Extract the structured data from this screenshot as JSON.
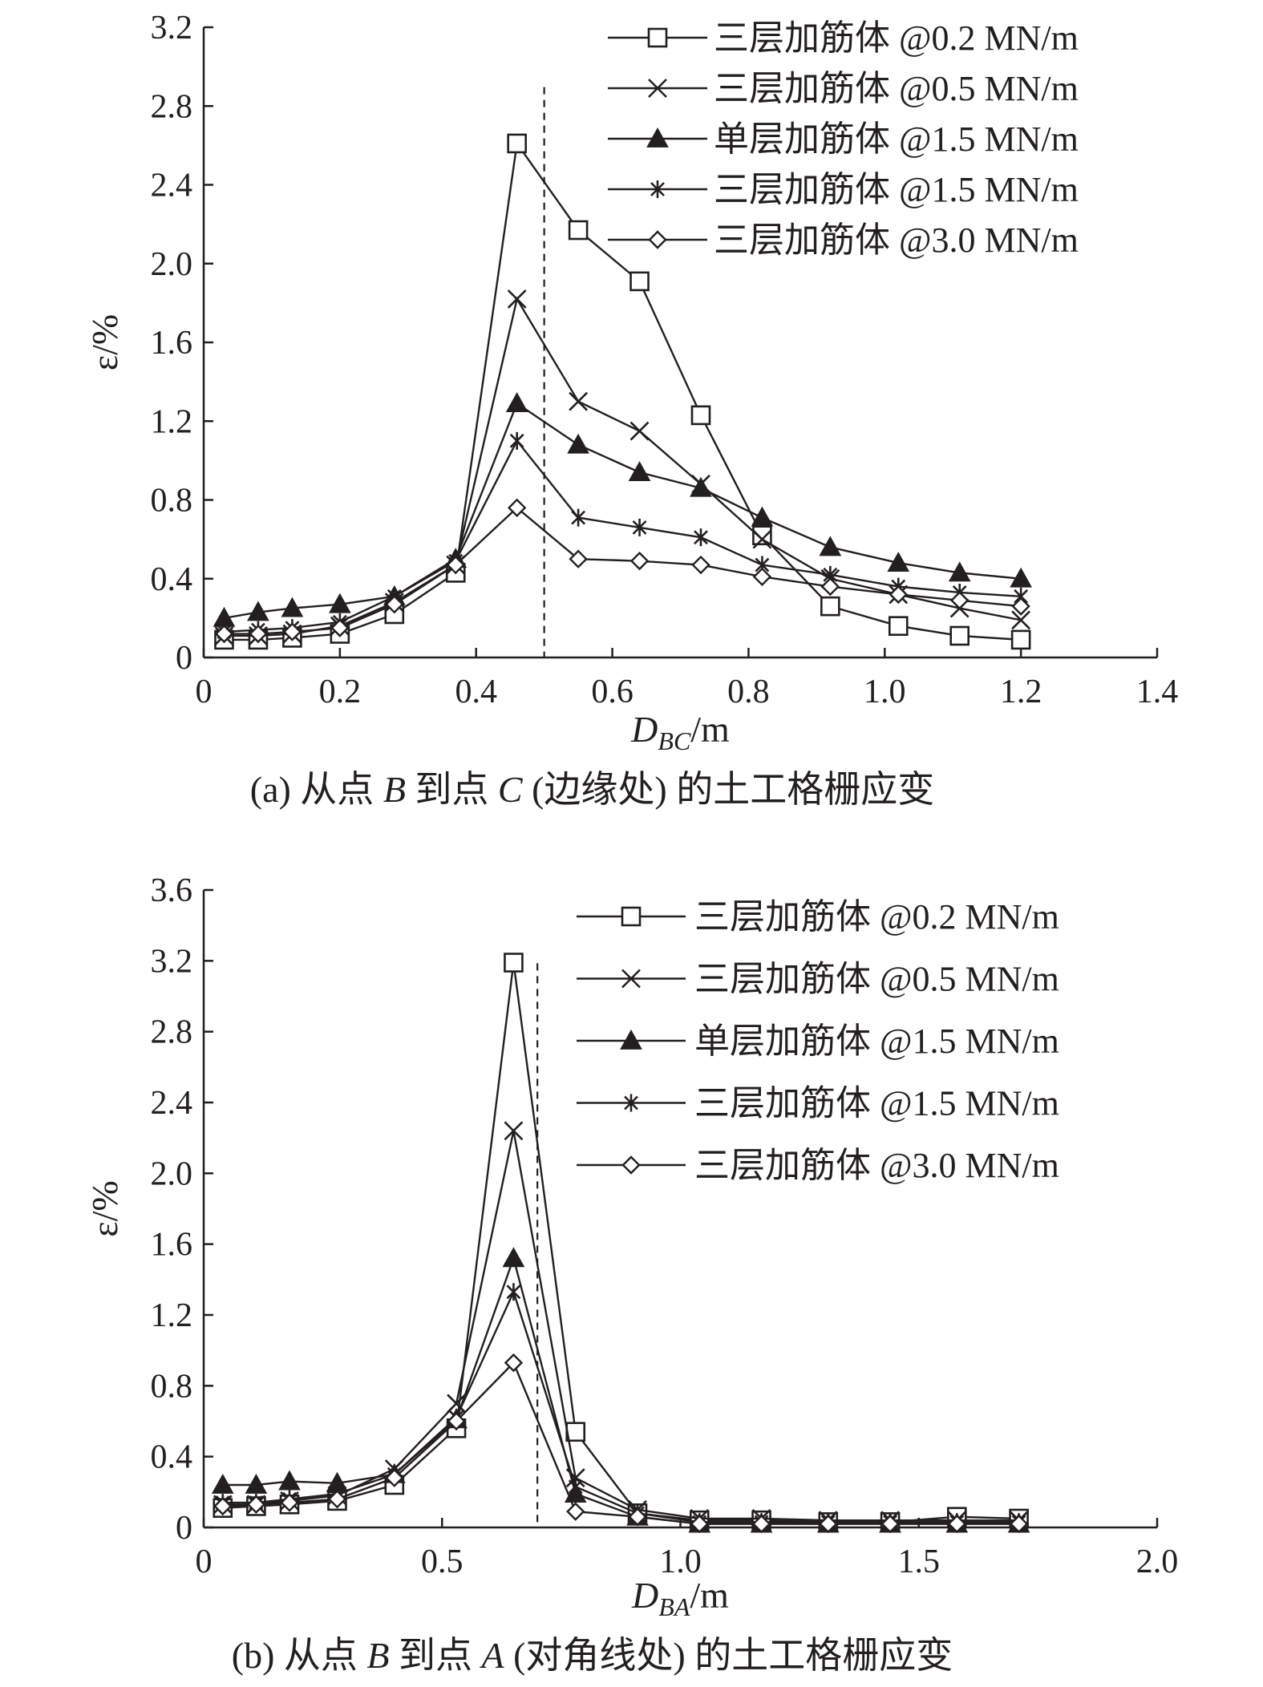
{
  "chart_data": [
    {
      "type": "line",
      "caption": "(a) 从点 B 到点 C (边缘处) 的土工格栅应变",
      "ylabel": "ε/%",
      "xlabel": {
        "base": "D",
        "sub": "BC",
        "unit": "/m"
      },
      "xlim": [
        0,
        1.4
      ],
      "ylim": [
        0,
        3.2
      ],
      "xticks": [
        "0",
        "0.2",
        "0.4",
        "0.6",
        "0.8",
        "1.0",
        "1.2",
        "1.4"
      ],
      "yticks": [
        "0",
        "0.4",
        "0.8",
        "1.2",
        "1.6",
        "2.0",
        "2.4",
        "2.8",
        "3.2"
      ],
      "reference_line_x": 0.5,
      "x": [
        0.03,
        0.08,
        0.13,
        0.2,
        0.28,
        0.37,
        0.46,
        0.55,
        0.64,
        0.73,
        0.82,
        0.92,
        1.02,
        1.11,
        1.2
      ],
      "series": [
        {
          "name": "三层加筋体 @0.2 MN/m",
          "marker": "square",
          "values": [
            0.09,
            0.09,
            0.1,
            0.12,
            0.22,
            0.43,
            2.61,
            2.17,
            1.91,
            1.23,
            0.62,
            0.26,
            0.16,
            0.11,
            0.09
          ]
        },
        {
          "name": "三层加筋体 @0.5 MN/m",
          "marker": "x",
          "values": [
            0.11,
            0.11,
            0.12,
            0.16,
            0.28,
            0.47,
            1.82,
            1.3,
            1.15,
            0.88,
            0.6,
            0.4,
            0.32,
            0.25,
            0.19
          ]
        },
        {
          "name": "单层加筋体 @1.5 MN/m",
          "marker": "triangle",
          "values": [
            0.2,
            0.23,
            0.25,
            0.27,
            0.31,
            0.5,
            1.29,
            1.08,
            0.94,
            0.86,
            0.71,
            0.56,
            0.48,
            0.43,
            0.4
          ]
        },
        {
          "name": "三层加筋体 @1.5 MN/m",
          "marker": "asterisk",
          "values": [
            0.13,
            0.14,
            0.15,
            0.18,
            0.31,
            0.49,
            1.1,
            0.71,
            0.66,
            0.61,
            0.47,
            0.42,
            0.36,
            0.33,
            0.31
          ]
        },
        {
          "name": "三层加筋体 @3.0 MN/m",
          "marker": "diamond",
          "values": [
            0.12,
            0.12,
            0.13,
            0.15,
            0.27,
            0.47,
            0.76,
            0.5,
            0.49,
            0.47,
            0.41,
            0.36,
            0.32,
            0.29,
            0.26
          ]
        }
      ]
    },
    {
      "type": "line",
      "caption": "(b) 从点 B 到点 A (对角线处) 的土工格栅应变",
      "ylabel": "ε/%",
      "xlabel": {
        "base": "D",
        "sub": "BA",
        "unit": "/m"
      },
      "xlim": [
        0,
        2.0
      ],
      "ylim": [
        0,
        3.6
      ],
      "xticks": [
        "0",
        "0.5",
        "1.0",
        "1.5",
        "2.0"
      ],
      "yticks": [
        "0",
        "0.4",
        "0.8",
        "1.2",
        "1.6",
        "2.0",
        "2.4",
        "2.8",
        "3.2",
        "3.6"
      ],
      "reference_line_x": 0.7,
      "x": [
        0.04,
        0.11,
        0.18,
        0.28,
        0.4,
        0.53,
        0.65,
        0.78,
        0.91,
        1.04,
        1.17,
        1.31,
        1.44,
        1.58,
        1.71
      ],
      "series": [
        {
          "name": "三层加筋体 @0.2 MN/m",
          "marker": "square",
          "values": [
            0.11,
            0.12,
            0.13,
            0.15,
            0.24,
            0.56,
            3.19,
            0.54,
            0.08,
            0.04,
            0.04,
            0.03,
            0.03,
            0.06,
            0.05
          ]
        },
        {
          "name": "三层加筋体 @0.5 MN/m",
          "marker": "x",
          "values": [
            0.13,
            0.13,
            0.15,
            0.18,
            0.33,
            0.7,
            2.24,
            0.28,
            0.1,
            0.05,
            0.05,
            0.04,
            0.04,
            0.04,
            0.04
          ]
        },
        {
          "name": "单层加筋体 @1.5 MN/m",
          "marker": "triangle",
          "values": [
            0.24,
            0.24,
            0.26,
            0.25,
            0.3,
            0.61,
            1.52,
            0.19,
            0.06,
            0.02,
            0.02,
            0.02,
            0.02,
            0.02,
            0.02
          ]
        },
        {
          "name": "三层加筋体 @1.5 MN/m",
          "marker": "asterisk",
          "values": [
            0.14,
            0.14,
            0.16,
            0.19,
            0.3,
            0.62,
            1.33,
            0.23,
            0.08,
            0.03,
            0.03,
            0.03,
            0.03,
            0.03,
            0.03
          ]
        },
        {
          "name": "三层加筋体 @3.0 MN/m",
          "marker": "diamond",
          "values": [
            0.12,
            0.13,
            0.14,
            0.16,
            0.28,
            0.6,
            0.93,
            0.09,
            0.06,
            0.02,
            0.02,
            0.02,
            0.02,
            0.02,
            0.02
          ]
        }
      ]
    }
  ]
}
